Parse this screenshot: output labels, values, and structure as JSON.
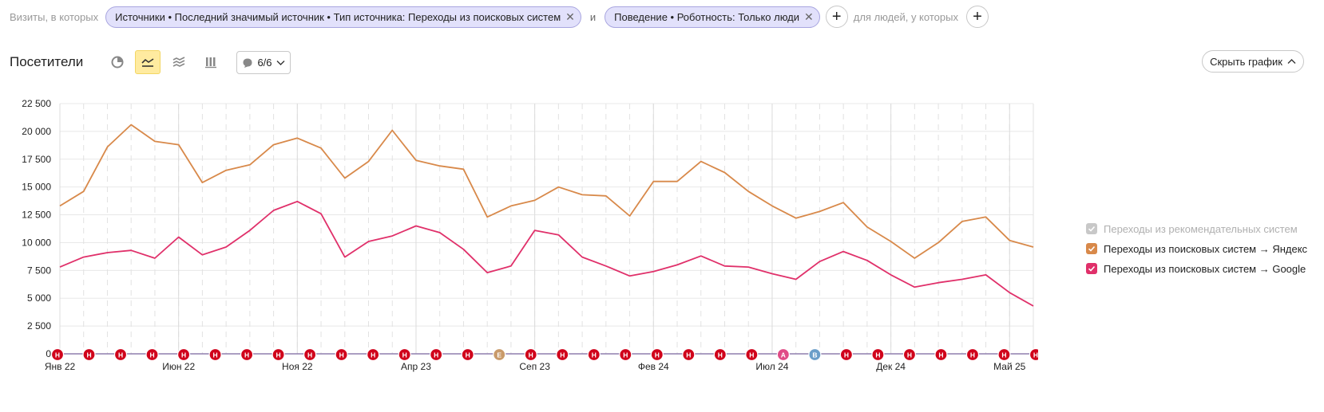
{
  "filters": {
    "prefix": "Визиты, в которых",
    "chip1": "Источники • Последний значимый источник • Тип источника: Переходы из поисковых систем",
    "and": "и",
    "chip2": "Поведение • Роботность: Только люди",
    "suffix": "для людей, у которых"
  },
  "toolbar": {
    "title": "Посетители",
    "annotations_count": "6/6",
    "hide_chart": "Скрыть график"
  },
  "colors": {
    "yandex": "#d8894a",
    "google": "#e0306a",
    "recommend": "#c8c8c8",
    "holiday_marker": "#d0021b",
    "release_marker_e": "#c99a6a",
    "release_marker_a": "#e04b86",
    "release_marker_b": "#6a9ec9"
  },
  "legend": [
    {
      "label": "Переходы из рекомендательных систем",
      "color": "#c8c8c8",
      "enabled": false
    },
    {
      "label": "Переходы из поисковых систем → Яндекс",
      "color": "#d8894a",
      "enabled": true
    },
    {
      "label": "Переходы из поисковых систем → Google",
      "color": "#e0306a",
      "enabled": true
    }
  ],
  "chart_data": {
    "type": "line",
    "x_labels": [
      "Янв 22",
      "Июн 22",
      "Ноя 22",
      "Апр 23",
      "Сеп 23",
      "Фев 24",
      "Июл 24",
      "Дек 24",
      "Май 25"
    ],
    "y_ticks": [
      "0",
      "2 500",
      "5 000",
      "7 500",
      "10 000",
      "12 500",
      "15 000",
      "17 500",
      "20 000",
      "22 500"
    ],
    "ylim": [
      0,
      22500
    ],
    "grid": true,
    "series": [
      {
        "name": "Переходы из поисковых систем → Яндекс",
        "values": [
          13300,
          14600,
          18600,
          20600,
          19100,
          18800,
          15400,
          16500,
          17000,
          18800,
          19400,
          18500,
          15800,
          17300,
          20100,
          17400,
          16900,
          16600,
          12300,
          13300,
          13800,
          15000,
          14300,
          14200,
          12400,
          15500,
          15500,
          17300,
          16300,
          14600,
          13300,
          12200,
          12800,
          13600,
          11400,
          10100,
          8600,
          10000,
          11900,
          12300,
          10200,
          9600
        ]
      },
      {
        "name": "Переходы из поисковых систем → Google",
        "values": [
          7800,
          8700,
          9100,
          9300,
          8600,
          10500,
          8900,
          9600,
          11100,
          12900,
          13700,
          12600,
          8700,
          10100,
          10600,
          11500,
          10900,
          9400,
          7300,
          7900,
          11100,
          10700,
          8700,
          7900,
          7000,
          7400,
          8000,
          8800,
          7900,
          7800,
          7200,
          6700,
          8300,
          9200,
          8400,
          7100,
          6000,
          6400,
          6700,
          7100,
          5500,
          4300
        ]
      }
    ],
    "annotation_markers": [
      "Н",
      "Н",
      "Н",
      "Н",
      "Н",
      "Н",
      "Н",
      "Н",
      "Н",
      "Н",
      "Н",
      "Н",
      "Н",
      "Н",
      "Е",
      "Н",
      "Н",
      "Н",
      "Н",
      "Н",
      "Н",
      "Н",
      "Н",
      "А",
      "В",
      "Н",
      "Н",
      "Н",
      "Н",
      "Н",
      "Н",
      "Н"
    ]
  }
}
